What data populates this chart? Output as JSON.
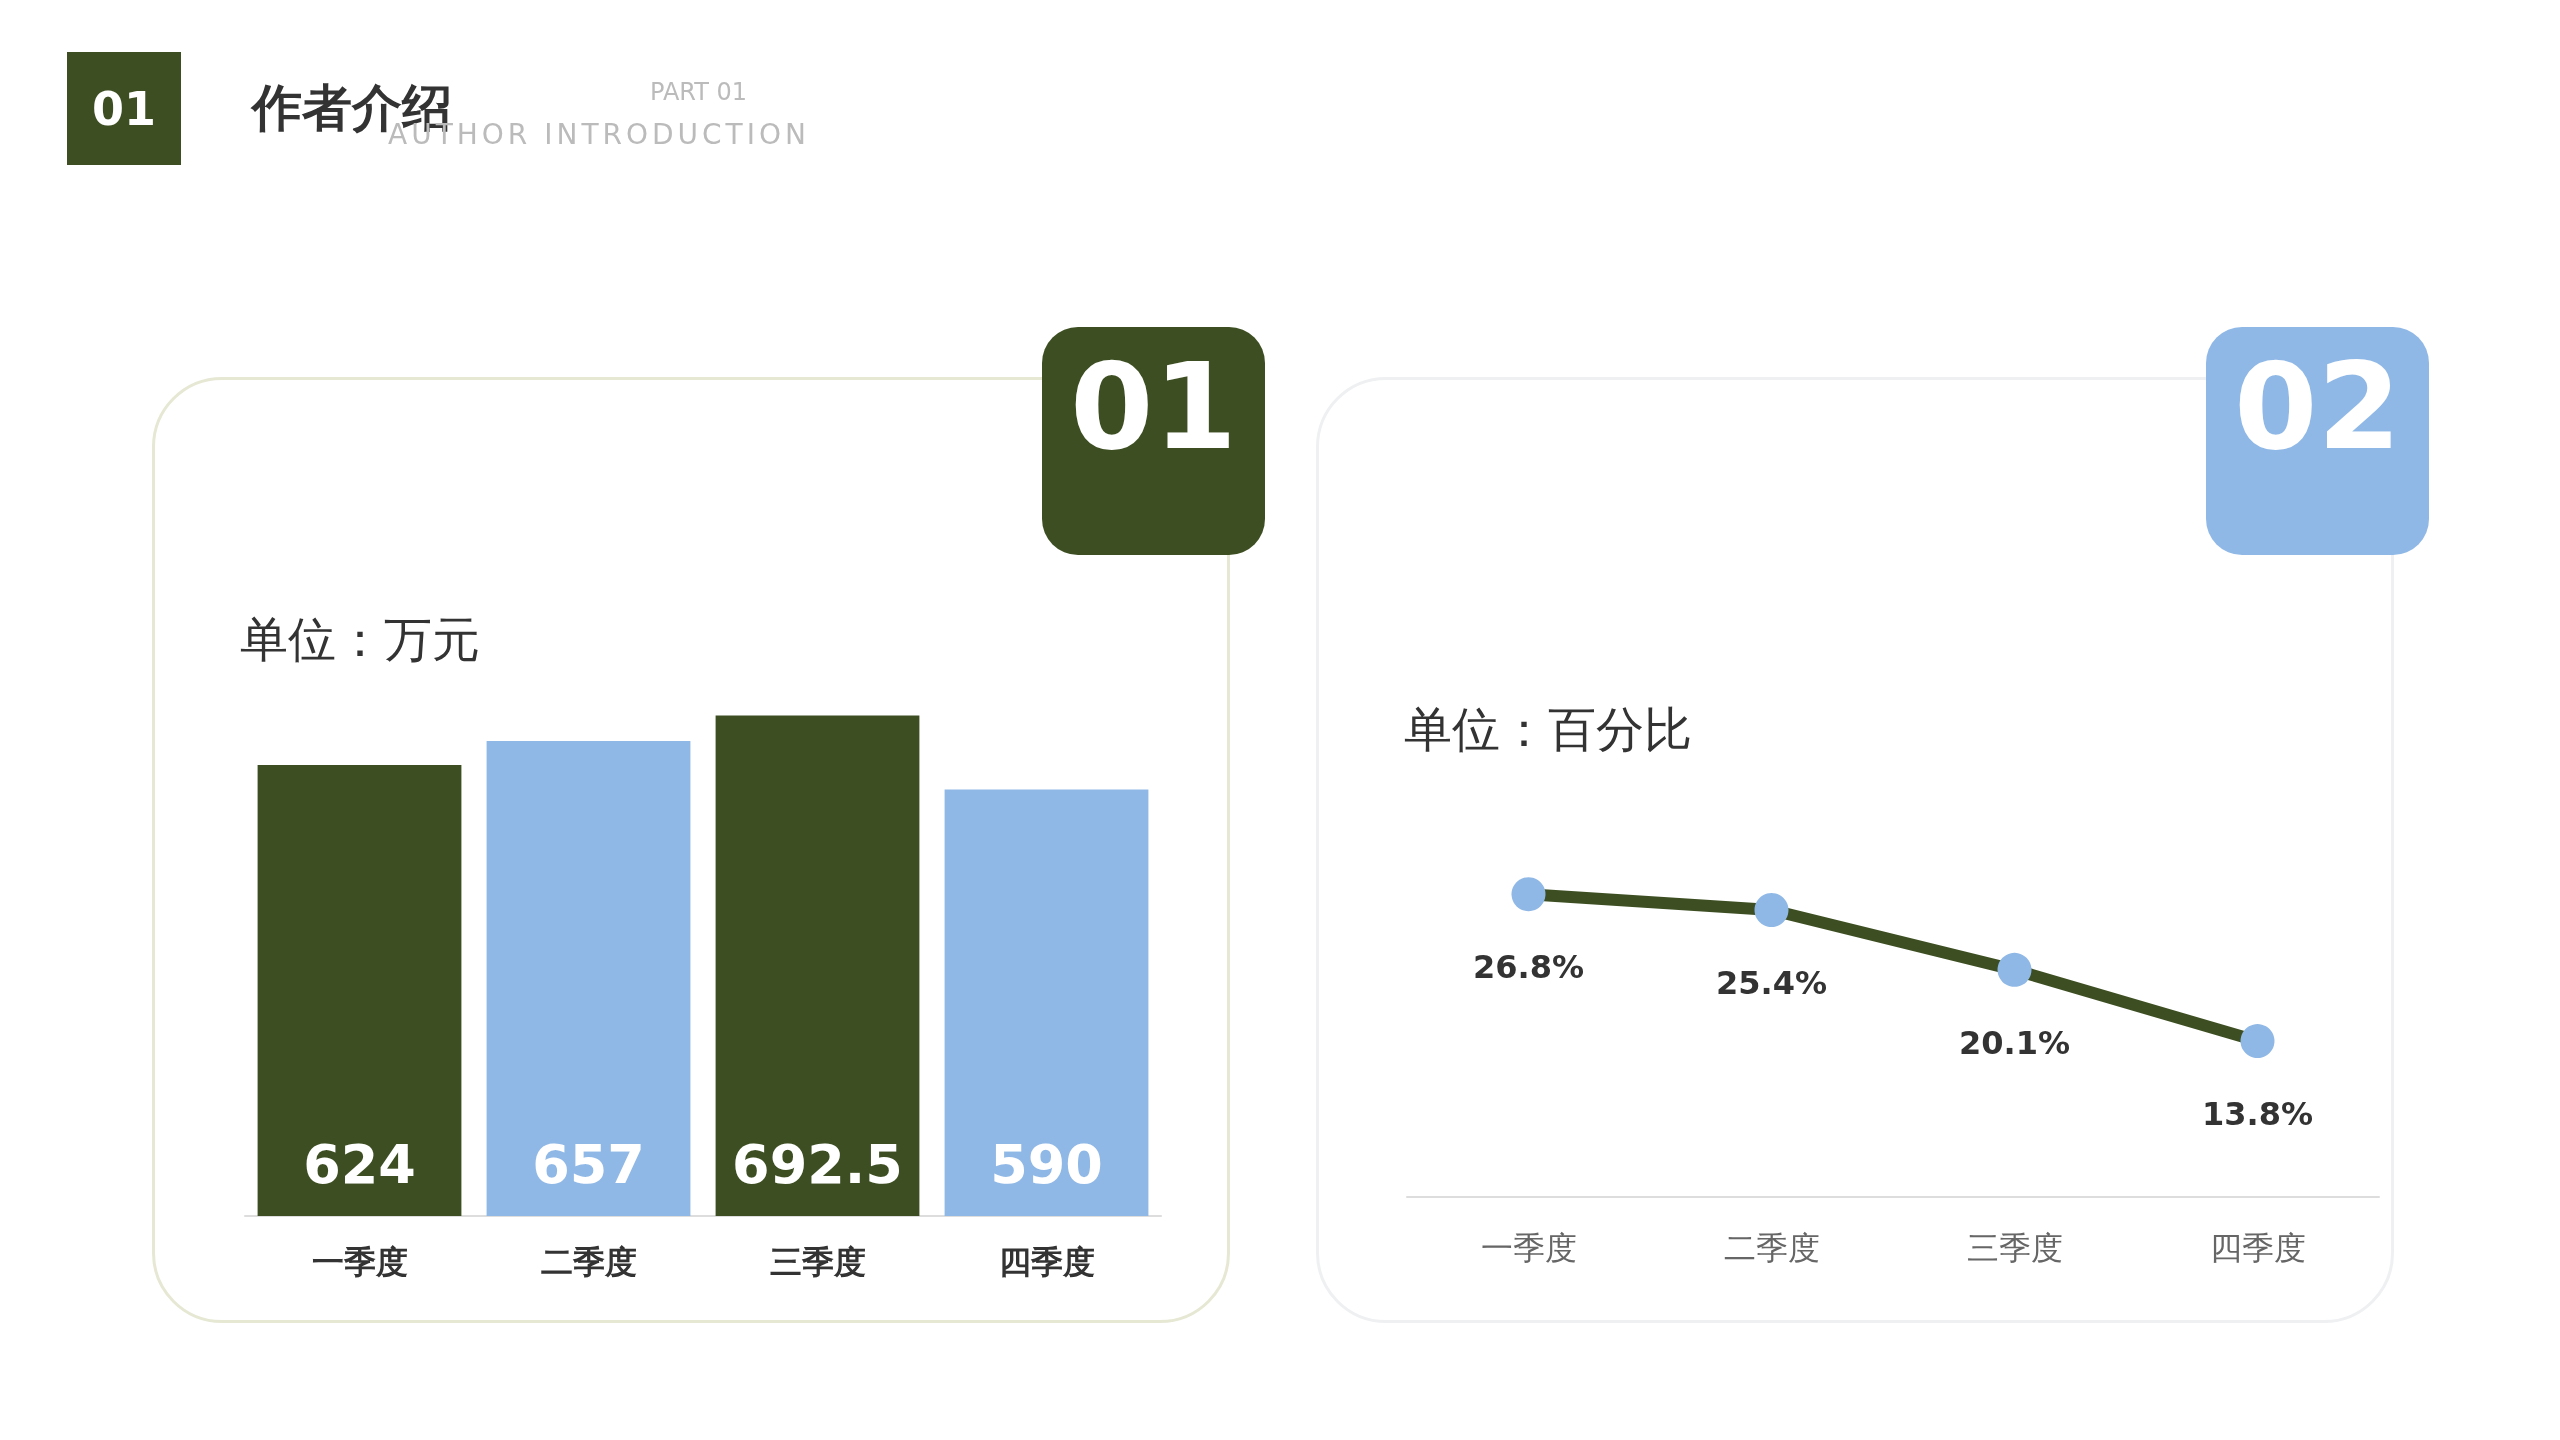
{
  "chart_data": [
    {
      "type": "other",
      "title": "作者介绍",
      "annotations": [
        "01",
        "PART 01",
        "AUTHOR INTRODUCTION"
      ]
    },
    {
      "type": "bar",
      "subtitle": "单位：万元",
      "annotations": [
        "01"
      ],
      "categories": [
        "一季度",
        "二季度",
        "三季度",
        "四季度"
      ],
      "values": [
        624,
        657,
        692.5,
        590
      ],
      "colors": [
        "#3d4f22",
        "#8fb8e6",
        "#3d4f22",
        "#8fb8e6"
      ],
      "data_labels": true
    },
    {
      "type": "line",
      "subtitle": "单位：百分比",
      "annotations": [
        "02"
      ],
      "categories": [
        "一季度",
        "二季度",
        "三季度",
        "四季度"
      ],
      "series": [
        {
          "color": "#3d4f22",
          "values": [
            26.8,
            25.4,
            20.1,
            13.8
          ],
          "value_labels": [
            "26.8%",
            "25.4%",
            "20.1%",
            "13.8%"
          ]
        }
      ],
      "colors": [
        "#8fb8e6",
        "#8fb8e6",
        "#8fb8e6",
        "#8fb8e6"
      ],
      "marker": "circle"
    }
  ]
}
